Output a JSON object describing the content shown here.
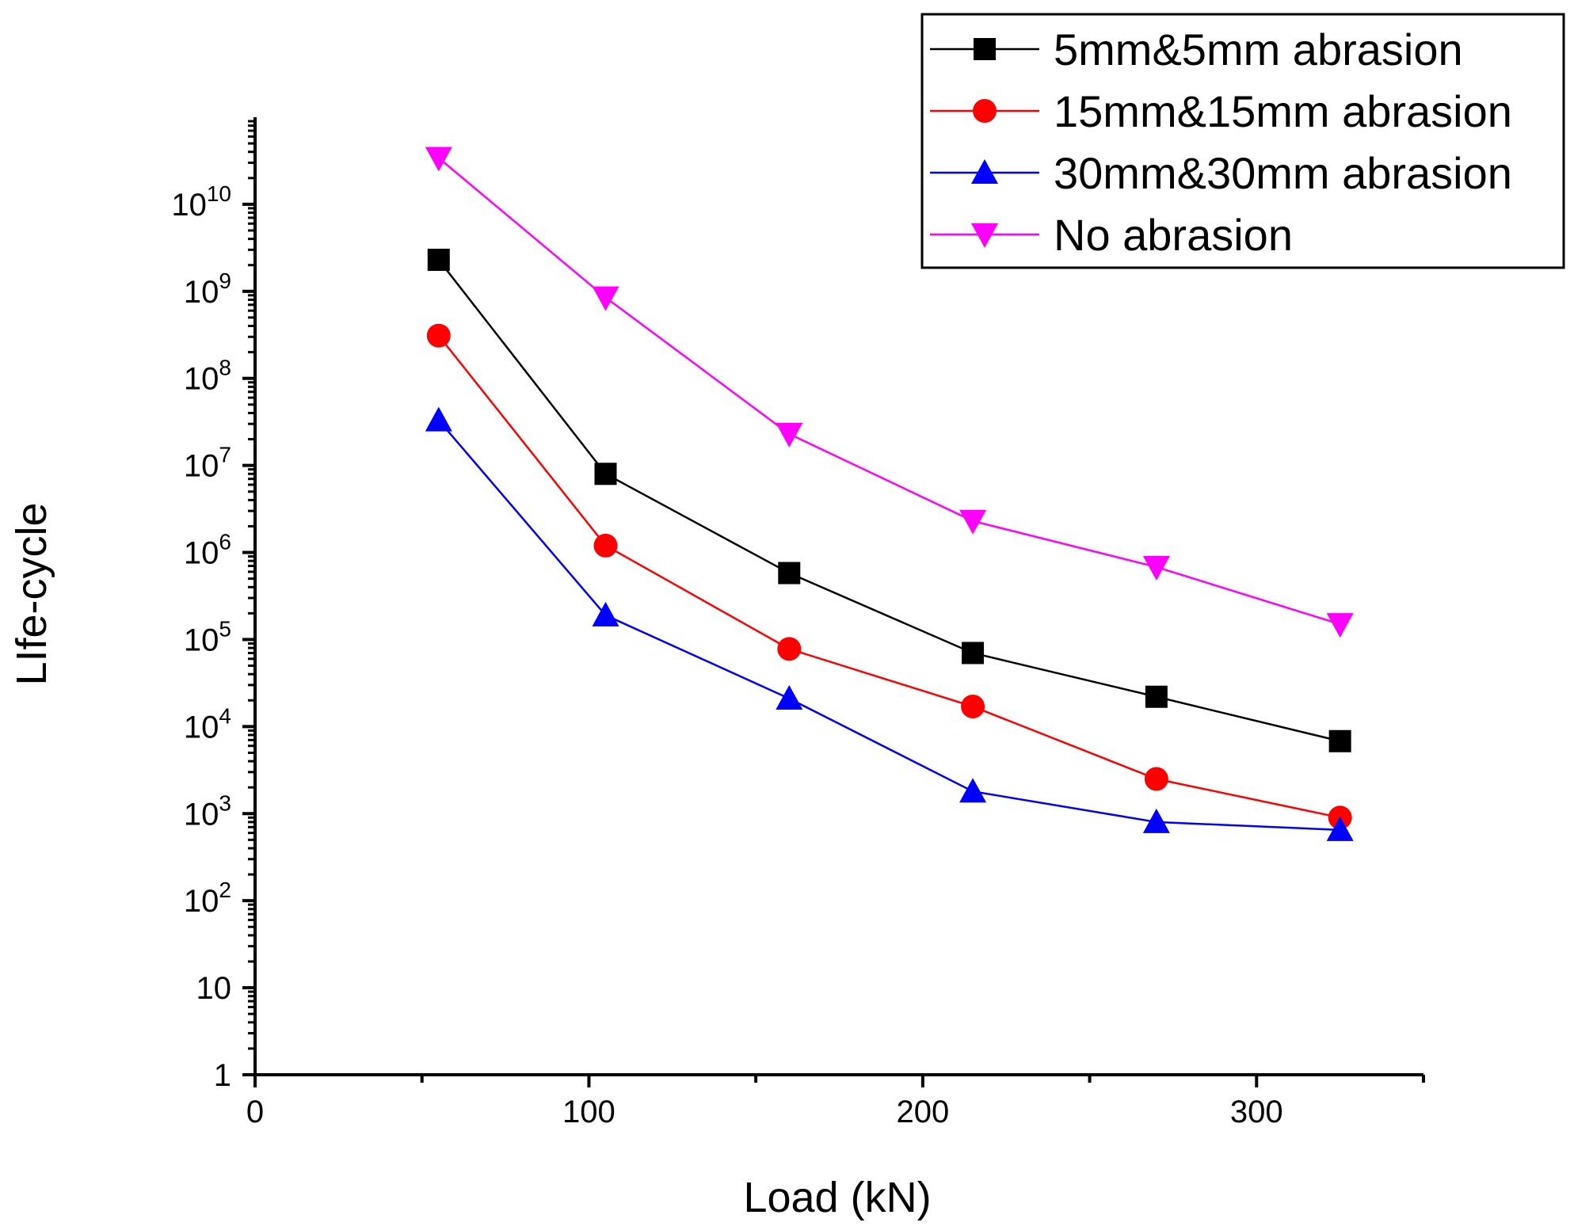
{
  "chart_data": {
    "type": "line",
    "title": "",
    "xlabel": "Load (kN)",
    "ylabel": "LIfe-cycle",
    "xlim": [
      0,
      350
    ],
    "ylim": [
      1,
      100000000000
    ],
    "yscale": "log",
    "grid": false,
    "legend_position": "top-right",
    "x_ticks": [
      {
        "value": 0,
        "label": "0"
      },
      {
        "value": 100,
        "label": "100"
      },
      {
        "value": 200,
        "label": "200"
      },
      {
        "value": 300,
        "label": "300"
      }
    ],
    "x_minor_ticks": [
      50,
      150,
      250,
      350
    ],
    "y_ticks": [
      {
        "exp": 0,
        "base": "1",
        "sup": ""
      },
      {
        "exp": 1,
        "base": "10",
        "sup": ""
      },
      {
        "exp": 2,
        "base": "10",
        "sup": "2"
      },
      {
        "exp": 3,
        "base": "10",
        "sup": "3"
      },
      {
        "exp": 4,
        "base": "10",
        "sup": "4"
      },
      {
        "exp": 5,
        "base": "10",
        "sup": "5"
      },
      {
        "exp": 6,
        "base": "10",
        "sup": "6"
      },
      {
        "exp": 7,
        "base": "10",
        "sup": "7"
      },
      {
        "exp": 8,
        "base": "10",
        "sup": "8"
      },
      {
        "exp": 9,
        "base": "10",
        "sup": "9"
      },
      {
        "exp": 10,
        "base": "10",
        "sup": "10"
      }
    ],
    "x": [
      55,
      105,
      160,
      215,
      270,
      325
    ],
    "series": [
      {
        "name": "5mm&5mm abrasion",
        "color": "#000000",
        "marker": "square",
        "values": [
          2300000000,
          8000000,
          580000,
          70000,
          22000,
          6800
        ]
      },
      {
        "name": "15mm&15mm abrasion",
        "color": "#ff0000",
        "marker": "circle",
        "values": [
          310000000,
          1200000,
          78000,
          17000,
          2500,
          900
        ]
      },
      {
        "name": "30mm&30mm abrasion",
        "color": "#0000ff",
        "marker": "triangle-up",
        "values": [
          33000000,
          190000,
          21000,
          1800,
          800,
          650
        ]
      },
      {
        "name": "No abrasion",
        "color": "#ff00ff",
        "marker": "triangle-down",
        "values": [
          34000000000,
          850000000,
          23000000,
          2300000,
          680000,
          150000
        ]
      }
    ]
  }
}
